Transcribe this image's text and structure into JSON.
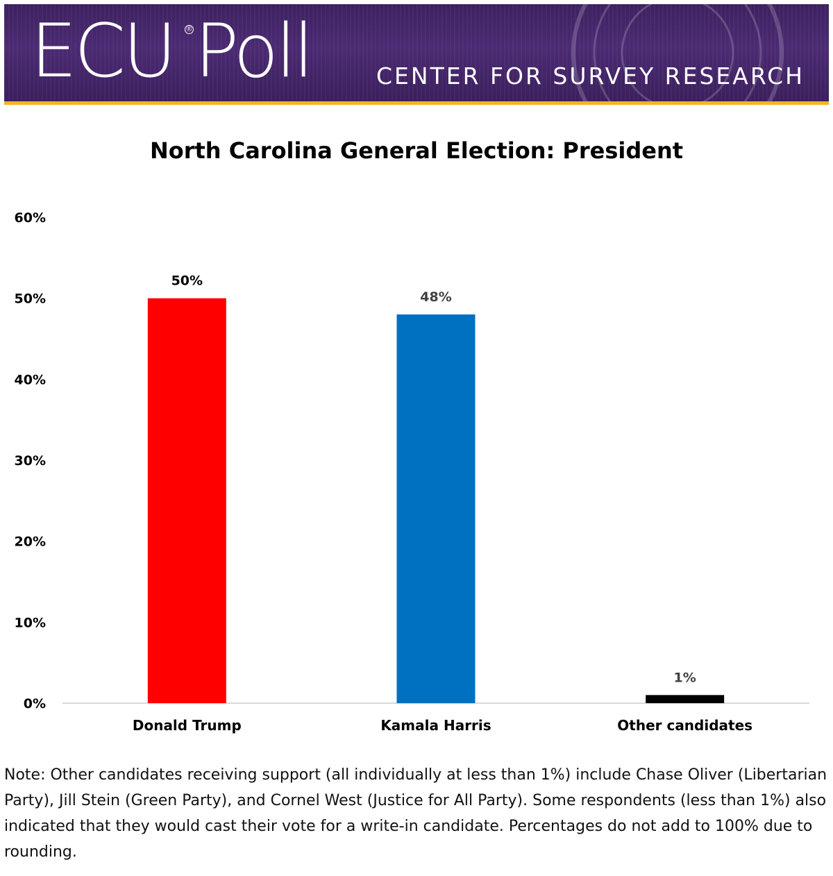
{
  "banner": {
    "logo": "ECU Poll",
    "registered": "®",
    "subtitle": "CENTER FOR SURVEY RESEARCH",
    "colors": {
      "background": "#4b2a73",
      "stripe": "#f2b526"
    }
  },
  "chart_data": {
    "type": "bar",
    "title": "North Carolina General Election: President",
    "categories": [
      "Donald Trump",
      "Kamala Harris",
      "Other candidates"
    ],
    "values": [
      50,
      48,
      1
    ],
    "value_labels": [
      "50%",
      "48%",
      "1%"
    ],
    "colors": [
      "#ff0000",
      "#0070c0",
      "#000000"
    ],
    "y_ticks": [
      "0%",
      "10%",
      "20%",
      "30%",
      "40%",
      "50%",
      "60%"
    ],
    "ylim": [
      0,
      60
    ],
    "xlabel": "",
    "ylabel": "",
    "grid": false,
    "legend": "none"
  },
  "note": "Note: Other candidates receiving support (all individually at less than 1%) include Chase Oliver (Libertarian Party), Jill Stein (Green Party), and Cornel West (Justice for All Party). Some respondents (less than 1%) also indicated that they would cast their vote for a write-in candidate. Percentages do not add to 100% due to rounding."
}
